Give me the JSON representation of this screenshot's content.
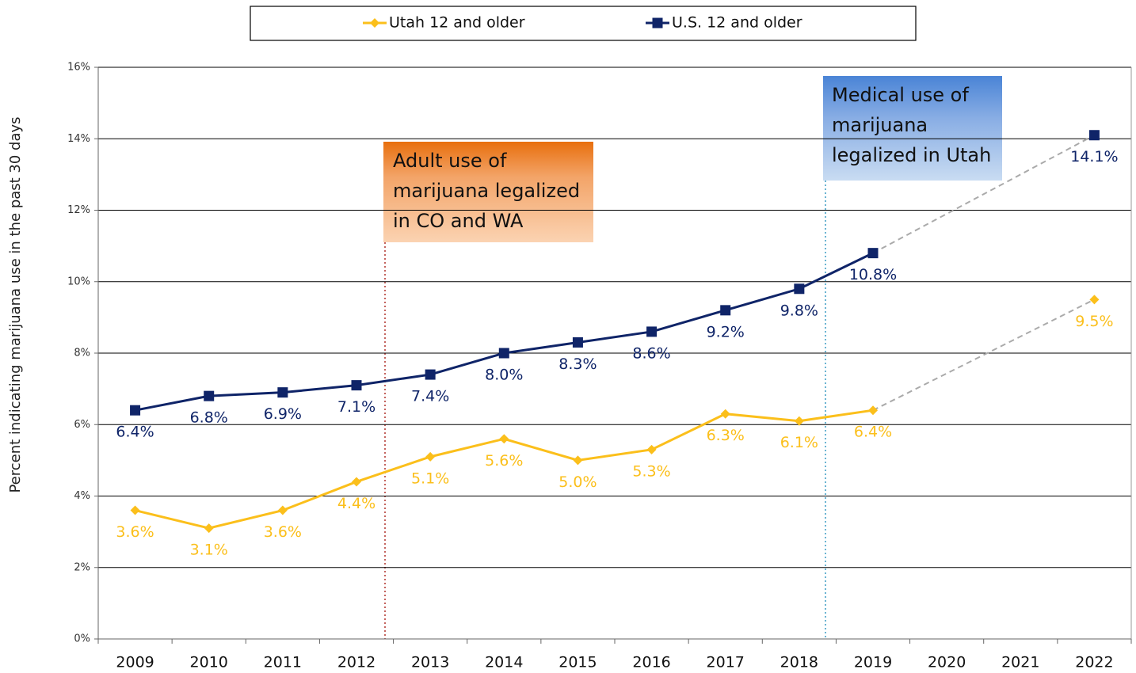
{
  "chart_data": {
    "type": "line",
    "y_label": "Percent indicating marijuana use in the past 30 days",
    "categories": [
      "2009",
      "2010",
      "2011",
      "2012",
      "2013",
      "2014",
      "2015",
      "2016",
      "2017",
      "2018",
      "2019",
      "2020",
      "2021",
      "2022"
    ],
    "series": [
      {
        "name": "Utah 12 and older",
        "color": "#fbbf1b",
        "marker": "diamond",
        "values": [
          3.6,
          3.1,
          3.6,
          4.4,
          5.1,
          5.6,
          5.0,
          5.3,
          6.3,
          6.1,
          6.4,
          null,
          null,
          9.5
        ],
        "value_labels": [
          "3.6%",
          "3.1%",
          "3.6%",
          "4.4%",
          "5.1%",
          "5.6%",
          "5.0%",
          "5.3%",
          "6.3%",
          "6.1%",
          "6.4%",
          null,
          null,
          "9.5%"
        ]
      },
      {
        "name": "U.S. 12 and older",
        "color": "#0f2468",
        "marker": "square",
        "values": [
          6.4,
          6.8,
          6.9,
          7.1,
          7.4,
          8.0,
          8.3,
          8.6,
          9.2,
          9.8,
          10.8,
          null,
          null,
          14.1
        ],
        "value_labels": [
          "6.4%",
          "6.8%",
          "6.9%",
          "7.1%",
          "7.4%",
          "8.0%",
          "8.3%",
          "8.6%",
          "9.2%",
          "9.8%",
          "10.8%",
          null,
          null,
          "14.1%"
        ]
      }
    ],
    "ylim": [
      0,
      16
    ],
    "yticks": [
      {
        "value": 0,
        "label": "0%"
      },
      {
        "value": 2,
        "label": "2%"
      },
      {
        "value": 4,
        "label": "4%"
      },
      {
        "value": 6,
        "label": "6%"
      },
      {
        "value": 8,
        "label": "8%"
      },
      {
        "value": 10,
        "label": "10%"
      },
      {
        "value": 12,
        "label": "12%"
      },
      {
        "value": 14,
        "label": "14%"
      },
      {
        "value": 16,
        "label": "16%"
      }
    ],
    "grid": true,
    "legend": "top",
    "annotations": [
      {
        "lines": [
          "Adult use of",
          "marijuana legalized",
          "in CO and WA"
        ]
      },
      {
        "lines": [
          "Medical use of",
          "marijuana",
          "legalized in Utah"
        ]
      }
    ]
  }
}
